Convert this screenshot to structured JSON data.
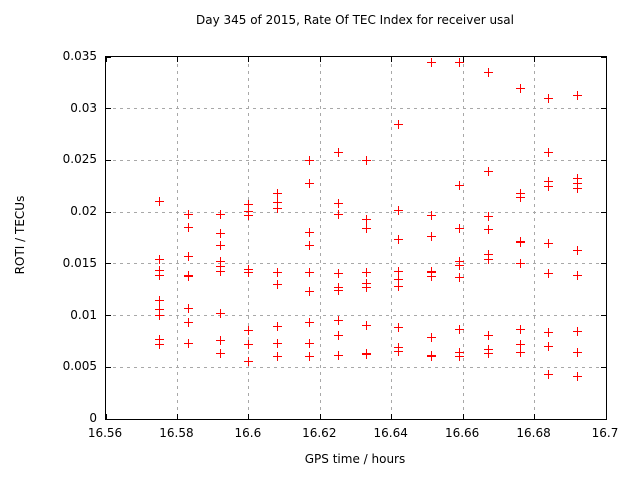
{
  "page": {
    "background": "#ffffff",
    "border_color": "#000000",
    "grid_color": "#a8a8a8"
  },
  "chart_data": {
    "type": "scatter",
    "title": "Day 345 of 2015, Rate Of TEC Index for receiver usal",
    "xlabel": "GPS time / hours",
    "ylabel": "ROTI / TECUs",
    "xlim": [
      16.56,
      16.7
    ],
    "ylim": [
      0,
      0.035
    ],
    "xtick_values": [
      16.56,
      16.58,
      16.6,
      16.62,
      16.64,
      16.66,
      16.68,
      16.7
    ],
    "xtick_labels": [
      "16.56",
      "16.58",
      "16.6",
      "16.62",
      "16.64",
      "16.66",
      "16.68",
      "16.7"
    ],
    "ytick_values": [
      0,
      0.005,
      0.01,
      0.015,
      0.02,
      0.025,
      0.03,
      0.035
    ],
    "ytick_labels": [
      "0",
      "0.005",
      "0.01",
      "0.015",
      "0.02",
      "0.025",
      "0.03",
      "0.035"
    ],
    "grid": true,
    "legend": "none",
    "marker": "plus",
    "marker_color": "#ff0000",
    "points": [
      [
        16.575,
        0.021
      ],
      [
        16.575,
        0.0154
      ],
      [
        16.575,
        0.0144
      ],
      [
        16.575,
        0.0139
      ],
      [
        16.575,
        0.0115
      ],
      [
        16.575,
        0.0106
      ],
      [
        16.575,
        0.01
      ],
      [
        16.575,
        0.0077
      ],
      [
        16.575,
        0.0072
      ],
      [
        16.583,
        0.0198
      ],
      [
        16.583,
        0.0185
      ],
      [
        16.583,
        0.0157
      ],
      [
        16.583,
        0.0139
      ],
      [
        16.583,
        0.0138
      ],
      [
        16.583,
        0.0107
      ],
      [
        16.583,
        0.0093
      ],
      [
        16.583,
        0.0073
      ],
      [
        16.592,
        0.0198
      ],
      [
        16.592,
        0.0179
      ],
      [
        16.592,
        0.0168
      ],
      [
        16.592,
        0.0152
      ],
      [
        16.592,
        0.0147
      ],
      [
        16.592,
        0.0143
      ],
      [
        16.592,
        0.0102
      ],
      [
        16.592,
        0.0076
      ],
      [
        16.592,
        0.0063
      ],
      [
        16.6,
        0.0207
      ],
      [
        16.6,
        0.0201
      ],
      [
        16.6,
        0.0197
      ],
      [
        16.6,
        0.0145
      ],
      [
        16.6,
        0.0142
      ],
      [
        16.6,
        0.0086
      ],
      [
        16.6,
        0.0072
      ],
      [
        16.6,
        0.0056
      ],
      [
        16.608,
        0.0218
      ],
      [
        16.608,
        0.0209
      ],
      [
        16.608,
        0.0204
      ],
      [
        16.608,
        0.0142
      ],
      [
        16.608,
        0.013
      ],
      [
        16.608,
        0.0089
      ],
      [
        16.608,
        0.0073
      ],
      [
        16.608,
        0.006
      ],
      [
        16.617,
        0.025
      ],
      [
        16.617,
        0.0228
      ],
      [
        16.617,
        0.018
      ],
      [
        16.617,
        0.0168
      ],
      [
        16.617,
        0.0142
      ],
      [
        16.617,
        0.0123
      ],
      [
        16.617,
        0.0093
      ],
      [
        16.617,
        0.0073
      ],
      [
        16.617,
        0.006
      ],
      [
        16.625,
        0.0258
      ],
      [
        16.625,
        0.0208
      ],
      [
        16.625,
        0.0198
      ],
      [
        16.625,
        0.0141
      ],
      [
        16.625,
        0.0127
      ],
      [
        16.625,
        0.0124
      ],
      [
        16.625,
        0.0095
      ],
      [
        16.625,
        0.0081
      ],
      [
        16.625,
        0.0061
      ],
      [
        16.633,
        0.025
      ],
      [
        16.633,
        0.0193
      ],
      [
        16.633,
        0.0184
      ],
      [
        16.633,
        0.0142
      ],
      [
        16.633,
        0.0131
      ],
      [
        16.633,
        0.0127
      ],
      [
        16.633,
        0.009
      ],
      [
        16.633,
        0.0063
      ],
      [
        16.633,
        0.0062
      ],
      [
        16.642,
        0.0285
      ],
      [
        16.642,
        0.0202
      ],
      [
        16.642,
        0.0174
      ],
      [
        16.642,
        0.0143
      ],
      [
        16.642,
        0.0135
      ],
      [
        16.642,
        0.0128
      ],
      [
        16.642,
        0.0088
      ],
      [
        16.642,
        0.0069
      ],
      [
        16.642,
        0.0065
      ],
      [
        16.651,
        0.0345
      ],
      [
        16.651,
        0.0197
      ],
      [
        16.651,
        0.0176
      ],
      [
        16.651,
        0.0143
      ],
      [
        16.651,
        0.0142
      ],
      [
        16.651,
        0.0138
      ],
      [
        16.651,
        0.0079
      ],
      [
        16.651,
        0.0061
      ],
      [
        16.651,
        0.006
      ],
      [
        16.659,
        0.0345
      ],
      [
        16.659,
        0.0226
      ],
      [
        16.659,
        0.0184
      ],
      [
        16.659,
        0.0152
      ],
      [
        16.659,
        0.0148
      ],
      [
        16.659,
        0.0137
      ],
      [
        16.659,
        0.0087
      ],
      [
        16.659,
        0.0064
      ],
      [
        16.659,
        0.006
      ],
      [
        16.667,
        0.0335
      ],
      [
        16.667,
        0.0239
      ],
      [
        16.667,
        0.0196
      ],
      [
        16.667,
        0.0183
      ],
      [
        16.667,
        0.0159
      ],
      [
        16.667,
        0.0154
      ],
      [
        16.667,
        0.0081
      ],
      [
        16.667,
        0.0067
      ],
      [
        16.667,
        0.0063
      ],
      [
        16.676,
        0.032
      ],
      [
        16.676,
        0.0218
      ],
      [
        16.676,
        0.0214
      ],
      [
        16.676,
        0.0172
      ],
      [
        16.676,
        0.0171
      ],
      [
        16.676,
        0.015
      ],
      [
        16.676,
        0.0087
      ],
      [
        16.676,
        0.0072
      ],
      [
        16.676,
        0.0064
      ],
      [
        16.684,
        0.031
      ],
      [
        16.684,
        0.0258
      ],
      [
        16.684,
        0.023
      ],
      [
        16.684,
        0.0225
      ],
      [
        16.684,
        0.017
      ],
      [
        16.684,
        0.0141
      ],
      [
        16.684,
        0.0084
      ],
      [
        16.684,
        0.007
      ],
      [
        16.684,
        0.0043
      ],
      [
        16.692,
        0.0313
      ],
      [
        16.692,
        0.0233
      ],
      [
        16.692,
        0.0228
      ],
      [
        16.692,
        0.0223
      ],
      [
        16.692,
        0.0163
      ],
      [
        16.692,
        0.0139
      ],
      [
        16.692,
        0.0085
      ],
      [
        16.692,
        0.0064
      ],
      [
        16.692,
        0.0041
      ]
    ]
  }
}
